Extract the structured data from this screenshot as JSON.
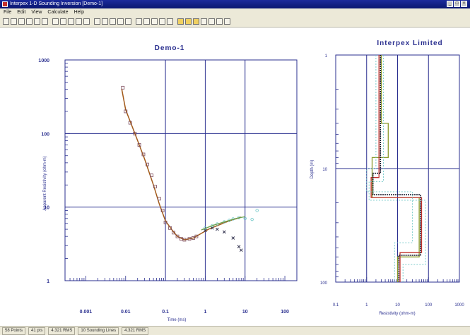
{
  "window": {
    "title": "Interpex 1-D Sounding Inversion [Demo-1]",
    "controls": [
      "_",
      "□",
      "×"
    ]
  },
  "menu": [
    "File",
    "Edit",
    "View",
    "Calculate",
    "Help"
  ],
  "toolbar": {
    "button_count": 28,
    "highlighted_indices": [
      21,
      22,
      23
    ]
  },
  "left_chart": {
    "title": "Demo-1",
    "xlabel": "Time (ms)",
    "ylabel": "Apparent Resistivity (ohm-m)",
    "x_ticks": [
      "0.001",
      "0.01",
      "0.1",
      "1",
      "10",
      "100"
    ],
    "y_ticks": [
      "1",
      "10",
      "100",
      "1000"
    ]
  },
  "right_chart": {
    "title": "Interpex Limited",
    "xlabel": "Resistivity (ohm-m)",
    "ylabel": "Depth (m)",
    "x_ticks": [
      "0.1",
      "1",
      "10",
      "100",
      "1000"
    ],
    "y_ticks": [
      "1",
      "10",
      "100"
    ]
  },
  "colors": {
    "axis_text": "#2a2f8f",
    "grid": "#2a2f8f",
    "fit_curve": "#a25a1a",
    "observed": "#7b4a5a",
    "cross_points": "#33334f",
    "cyan": "#6cc6c6",
    "green": "#6aa04a",
    "red": "#c0302a",
    "olive": "#8a9a2a"
  },
  "chart_data": [
    {
      "type": "scatter",
      "title": "Demo-1",
      "xlabel": "Time (ms)",
      "ylabel": "Apparent Resistivity (ohm-m)",
      "xscale": "log",
      "yscale": "log",
      "xlim": [
        0.0003,
        200
      ],
      "ylim": [
        1,
        1000
      ],
      "grid": true,
      "series": [
        {
          "style": "line",
          "points": [
            [
              0.008,
              400
            ],
            [
              0.01,
              210
            ],
            [
              0.015,
              120
            ],
            [
              0.02,
              80
            ],
            [
              0.03,
              45
            ],
            [
              0.05,
              20
            ],
            [
              0.07,
              11
            ],
            [
              0.1,
              6.5
            ],
            [
              0.15,
              4.8
            ],
            [
              0.2,
              4.0
            ],
            [
              0.3,
              3.6
            ],
            [
              0.5,
              3.8
            ],
            [
              0.8,
              4.4
            ],
            [
              1.2,
              5.0
            ],
            [
              2,
              5.6
            ],
            [
              4,
              6.5
            ],
            [
              8,
              7.3
            ]
          ]
        },
        {
          "style": "squares",
          "points": [
            [
              0.0085,
              420
            ],
            [
              0.01,
              200
            ],
            [
              0.013,
              140
            ],
            [
              0.017,
              100
            ],
            [
              0.022,
              70
            ],
            [
              0.028,
              52
            ],
            [
              0.035,
              38
            ],
            [
              0.045,
              27
            ],
            [
              0.055,
              19
            ],
            [
              0.07,
              13
            ],
            [
              0.085,
              9
            ],
            [
              0.1,
              6.2
            ],
            [
              0.13,
              5.2
            ],
            [
              0.16,
              4.5
            ],
            [
              0.2,
              4.0
            ],
            [
              0.25,
              3.7
            ],
            [
              0.3,
              3.6
            ],
            [
              0.4,
              3.7
            ],
            [
              0.5,
              3.8
            ],
            [
              0.6,
              4.0
            ]
          ]
        },
        {
          "style": "crosses",
          "points": [
            [
              1,
              4.8
            ],
            [
              1.5,
              5.2
            ],
            [
              2,
              5.0
            ],
            [
              3,
              4.6
            ],
            [
              5,
              3.8
            ],
            [
              7,
              2.9
            ],
            [
              8,
              2.6
            ]
          ]
        },
        {
          "style": "open-circles",
          "points": [
            [
              1,
              5.2
            ],
            [
              1.5,
              5.6
            ],
            [
              2,
              5.9
            ],
            [
              3,
              6.3
            ],
            [
              4,
              6.6
            ],
            [
              5,
              6.9
            ],
            [
              7,
              7.2
            ],
            [
              10,
              7.0
            ],
            [
              15,
              6.8
            ],
            [
              20,
              9.0
            ]
          ]
        },
        {
          "style": "line-green",
          "points": [
            [
              0.8,
              4.9
            ],
            [
              1.5,
              5.6
            ],
            [
              3,
              6.3
            ],
            [
              6,
              7.0
            ],
            [
              10,
              7.4
            ]
          ]
        }
      ]
    },
    {
      "type": "line",
      "title": "Interpex Limited",
      "xlabel": "Resistivity (ohm-m)",
      "ylabel": "Depth (m)",
      "xscale": "log",
      "yscale": "log",
      "xlim": [
        0.1,
        1000
      ],
      "ylim": [
        1,
        100
      ],
      "grid": true,
      "series": [
        {
          "style": "step-olive",
          "points": [
            [
              3,
              1
            ],
            [
              3,
              4
            ],
            [
              5,
              4
            ],
            [
              5,
              8
            ],
            [
              1.5,
              8
            ],
            [
              1.5,
              18
            ],
            [
              50,
              18
            ],
            [
              50,
              60
            ],
            [
              10,
              60
            ],
            [
              10,
              100
            ]
          ]
        },
        {
          "style": "step-red",
          "points": [
            [
              2.5,
              1
            ],
            [
              2.5,
              12
            ],
            [
              1.4,
              12
            ],
            [
              1.4,
              18
            ],
            [
              60,
              18
            ],
            [
              60,
              55
            ],
            [
              12,
              55
            ],
            [
              12,
              100
            ]
          ]
        },
        {
          "style": "step-dark",
          "points": [
            [
              2.8,
              1
            ],
            [
              2.8,
              11
            ],
            [
              1.6,
              11
            ],
            [
              1.6,
              17
            ],
            [
              55,
              17
            ],
            [
              55,
              58
            ],
            [
              11,
              58
            ],
            [
              11,
              100
            ]
          ]
        },
        {
          "style": "equivalence-cyan",
          "points": [
            [
              2,
              1
            ],
            [
              2,
              10
            ],
            [
              1,
              10
            ],
            [
              1,
              16
            ],
            [
              30,
              16
            ],
            [
              30,
              45
            ],
            [
              8,
              45
            ],
            [
              8,
              100
            ]
          ]
        },
        {
          "style": "equivalence-cyan-2",
          "points": [
            [
              3.5,
              1
            ],
            [
              3.5,
              13
            ],
            [
              1.2,
              13
            ],
            [
              1.2,
              19
            ],
            [
              80,
              19
            ],
            [
              80,
              70
            ],
            [
              15,
              70
            ],
            [
              15,
              100
            ]
          ]
        }
      ]
    }
  ],
  "status": [
    "58 Points",
    "41 pts",
    "4.321 RMS",
    "10 Sounding Lines",
    "4.321 RMS"
  ]
}
